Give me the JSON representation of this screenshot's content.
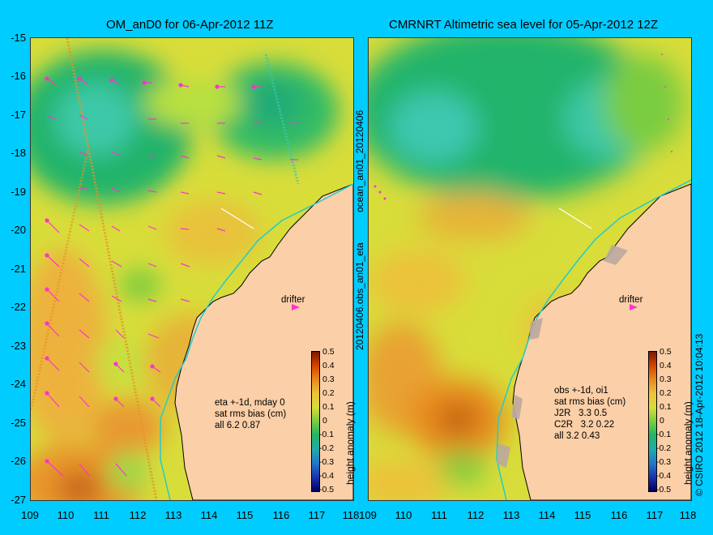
{
  "left_panel": {
    "title": "OM_anD0 for 06-Apr-2012 11Z",
    "annotation_lines": [
      "eta +-1d, mday 0",
      "sat rms bias (cm)",
      "all 6.2 0.87"
    ],
    "drifter_label": "drifter",
    "side_label_top": "ocean_an01_20120406",
    "side_label_bottom": "20120406.obs_an01_eta"
  },
  "right_panel": {
    "title": "CMRNRT Altimetric sea level  for 05-Apr-2012 12Z",
    "annotation_lines": [
      "obs +-1d, oi1",
      "sat rms bias (cm)",
      "J2R   3.3 0.5",
      "C2R   3.2 0.22",
      "all 3.2 0.43"
    ],
    "drifter_label": "drifter",
    "credit": "© CSIRO 2012   18-Apr-2012 10:04:13"
  },
  "axes": {
    "lat_ticks": [
      "-15",
      "-16",
      "-17",
      "-18",
      "-19",
      "-20",
      "-21",
      "-22",
      "-23",
      "-24",
      "-25",
      "-26",
      "-27"
    ],
    "lon_ticks": [
      "109",
      "110",
      "111",
      "112",
      "113",
      "114",
      "115",
      "116",
      "117",
      "118"
    ]
  },
  "colorbar": {
    "label": "height anomaly (m)",
    "ticks": [
      "0.5",
      "0.4",
      "0.3",
      "0.2",
      "0.1",
      "0",
      "-0.1",
      "-0.2",
      "-0.3",
      "-0.4",
      "-0.5"
    ]
  },
  "colors": {
    "background": "#00ccff",
    "land": "#fbcfa7",
    "coast_line": "#22cccc",
    "vector": "#ff33cc"
  }
}
